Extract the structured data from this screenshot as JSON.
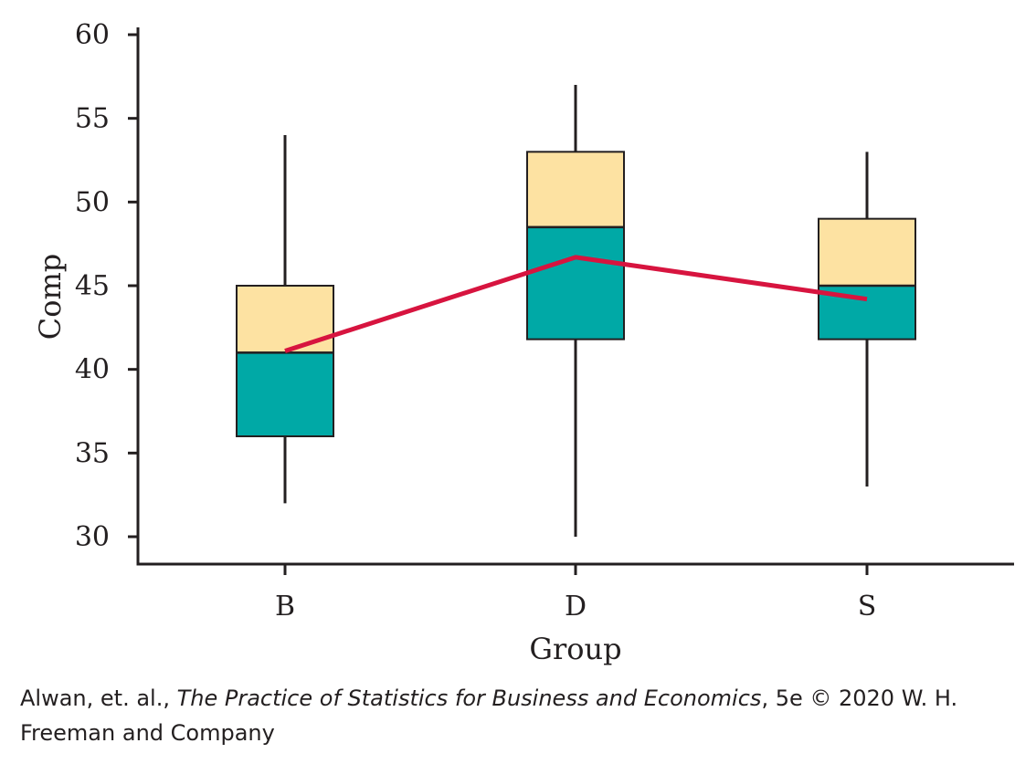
{
  "chart_data": {
    "type": "box",
    "xlabel": "Group",
    "ylabel": "Comp",
    "ylim": [
      30,
      60
    ],
    "yticks": [
      30,
      35,
      40,
      45,
      50,
      55,
      60
    ],
    "categories": [
      "B",
      "D",
      "S"
    ],
    "boxes": [
      {
        "category": "B",
        "min": 32,
        "q1": 36,
        "median": 41,
        "q3": 45,
        "max": 54
      },
      {
        "category": "D",
        "min": 30,
        "q1": 41.8,
        "median": 48.5,
        "q3": 53,
        "max": 57
      },
      {
        "category": "S",
        "min": 33,
        "q1": 41.8,
        "median": 45,
        "q3": 49,
        "max": 53
      }
    ],
    "means": [
      41.1,
      46.7,
      44.2
    ],
    "colors": {
      "upper_box": "#fde2a2",
      "lower_box": "#00a9a6",
      "mean_line": "#d7143f",
      "axis": "#231f20"
    }
  },
  "credit": {
    "prefix": "Alwan, et. al., ",
    "book": "The Practice of Statistics for Business and Economics",
    "suffix": ", 5e © 2020 W. H. Freeman and Company"
  }
}
